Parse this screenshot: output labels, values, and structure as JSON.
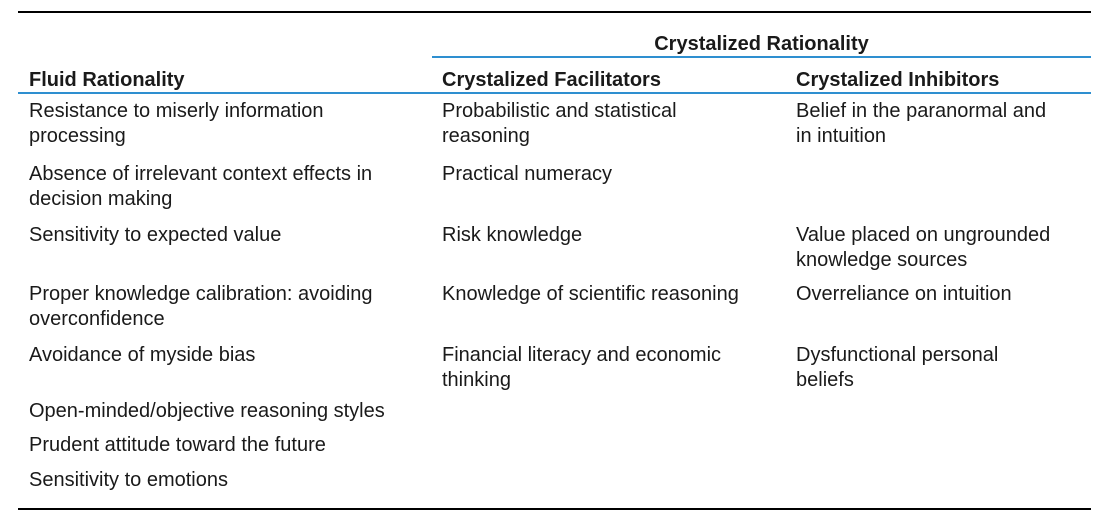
{
  "table": {
    "group_header": "Crystalized Rationality",
    "columns": [
      "Fluid Rationality",
      "Crystalized Facilitators",
      "Crystalized Inhibitors"
    ],
    "rows": [
      {
        "fluid": [
          "Resistance to miserly information",
          "processing"
        ],
        "facilitators": [
          "Probabilistic and statistical",
          "reasoning"
        ],
        "inhibitors": [
          "Belief in the paranormal and",
          "in intuition"
        ]
      },
      {
        "fluid": [
          "Absence of irrelevant context effects in",
          "decision making"
        ],
        "facilitators": [
          "Practical numeracy"
        ],
        "inhibitors": []
      },
      {
        "fluid": [
          "Sensitivity to expected value"
        ],
        "facilitators": [
          "Risk knowledge"
        ],
        "inhibitors": [
          "Value placed on ungrounded",
          "knowledge sources"
        ]
      },
      {
        "fluid": [
          "Proper knowledge calibration: avoiding",
          "overconfidence"
        ],
        "facilitators": [
          "Knowledge of scientific reasoning"
        ],
        "inhibitors": [
          "Overreliance on intuition"
        ]
      },
      {
        "fluid": [
          "Avoidance of myside bias"
        ],
        "facilitators": [
          "Financial literacy and economic",
          "thinking"
        ],
        "inhibitors": [
          "Dysfunctional personal",
          "beliefs"
        ]
      },
      {
        "fluid": [
          "Open-minded/objective reasoning styles"
        ],
        "facilitators": [],
        "inhibitors": []
      },
      {
        "fluid": [
          "Prudent attitude toward the future"
        ],
        "facilitators": [],
        "inhibitors": []
      },
      {
        "fluid": [
          "Sensitivity to emotions"
        ],
        "facilitators": [],
        "inhibitors": []
      }
    ]
  }
}
